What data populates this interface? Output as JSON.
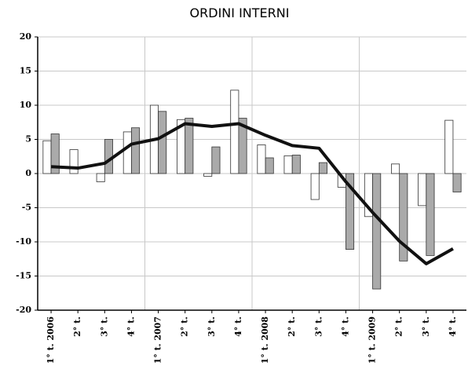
{
  "chart_data": {
    "type": "bar",
    "title": "ORDINI INTERNI",
    "categories": [
      "1° t. 2006",
      "2° t.",
      "3° t.",
      "4° t.",
      "1° t. 2007",
      "2° t.",
      "3° t.",
      "4° t.",
      "1° t. 2008",
      "2° t.",
      "3° t.",
      "4° t.",
      "1° t. 2009",
      "2° t.",
      "3° t.",
      "4° t."
    ],
    "series": [
      {
        "type": "bar",
        "color": "#ffffff",
        "values": [
          4.8,
          3.5,
          -1.2,
          6.1,
          10.0,
          7.9,
          -0.4,
          12.2,
          4.2,
          2.6,
          -3.8,
          -2.0,
          -6.3,
          1.4,
          -4.7,
          7.8
        ]
      },
      {
        "type": "bar",
        "color": "#aaaaaa",
        "values": [
          5.8,
          0,
          5.0,
          6.7,
          9.1,
          8.1,
          3.9,
          8.1,
          2.3,
          2.7,
          1.6,
          -11.1,
          -16.9,
          -12.8,
          -12.0,
          -2.7
        ]
      },
      {
        "type": "line",
        "color": "#111111",
        "values": [
          1.0,
          0.8,
          1.5,
          4.3,
          5.1,
          7.3,
          6.9,
          7.3,
          5.6,
          4.1,
          3.7,
          -1.2,
          -5.7,
          -9.9,
          -13.2,
          -11.0
        ]
      }
    ],
    "ylim": [
      -20,
      20
    ],
    "yticks": [
      -20,
      -15,
      -10,
      -5,
      0,
      5,
      10,
      15,
      20
    ],
    "grid": true
  }
}
